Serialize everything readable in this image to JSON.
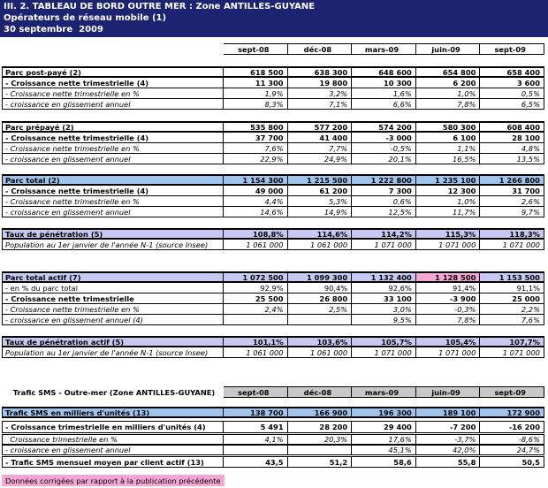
{
  "header": {
    "title": "III. 2. TABLEAU DE BORD OUTRE MER : Zone ANTILLES-GUYANE",
    "subtitle": "Opérateurs de réseau mobile (1)",
    "date": "30 septembre  2009"
  },
  "columns": [
    "sept-08",
    "déc-08",
    "mars-09",
    "juin-09",
    "sept-09"
  ],
  "sections": [
    {
      "rows": [
        {
          "label": "Parc post-payé (2)",
          "values": [
            "618 500",
            "638 300",
            "648 600",
            "654 800",
            "658 400"
          ]
        },
        {
          "label": "- Croissance nette trimestrielle (4)",
          "values": [
            "11 300",
            "19 800",
            "10 300",
            "6 200",
            "3 600"
          ]
        },
        {
          "label": "- Croissance nette trimestrielle en %",
          "values": [
            "1,9%",
            "3,2%",
            "1,6%",
            "1,0%",
            "0,5%"
          ]
        },
        {
          "label": "- croissance en glissement annuel",
          "values": [
            "8,3%",
            "7,1%",
            "6,6%",
            "7,8%",
            "6,5%"
          ]
        }
      ]
    },
    {
      "rows": [
        {
          "label": "Parc prépayé (2)",
          "values": [
            "535 800",
            "577 200",
            "574 200",
            "580 300",
            "608 400"
          ]
        },
        {
          "label": "- Croissance nette trimestrielle (4)",
          "values": [
            "37 700",
            "41 400",
            "-3 000",
            "6 100",
            "28 100"
          ]
        },
        {
          "label": "- Croissance nette trimestrielle en %",
          "values": [
            "7,6%",
            "7,7%",
            "-0,5%",
            "1,1%",
            "4,8%"
          ]
        },
        {
          "label": "- croissance en glissement annuel",
          "values": [
            "22,9%",
            "24,9%",
            "20,1%",
            "16,5%",
            "13,5%"
          ]
        }
      ]
    },
    {
      "rows": [
        {
          "label": "Parc total (2)",
          "values": [
            "1 154 300",
            "1 215 500",
            "1 222 800",
            "1 235 100",
            "1 266 800"
          ]
        },
        {
          "label": "- Croissance nette trimestrielle (4)",
          "values": [
            "49 000",
            "61 200",
            "7 300",
            "12 300",
            "31 700"
          ]
        },
        {
          "label": "- Croissance nette trimestrielle en %",
          "values": [
            "4,4%",
            "5,3%",
            "0,6%",
            "1,0%",
            "2,6%"
          ]
        },
        {
          "label": "- croissance en glissement annuel",
          "values": [
            "14,6%",
            "14,9%",
            "12,5%",
            "11,7%",
            "9,7%"
          ]
        }
      ]
    },
    {
      "rows": [
        {
          "label": "Taux de pénétration (5)",
          "values": [
            "108,8%",
            "114,6%",
            "114,2%",
            "115,3%",
            "118,3%"
          ]
        },
        {
          "label": "Population au 1er janvier de l'année N-1 (source Insee)",
          "values": [
            "1 061 000",
            "1 061 000",
            "1 071 000",
            "1 071 000",
            "1 071 000"
          ]
        }
      ]
    },
    {
      "rows": [
        {
          "label": "Parc total actif (7)",
          "values": [
            "1 072 500",
            "1 099 300",
            "1 132 400",
            "1 128 500",
            "1 153 500"
          ]
        },
        {
          "label": "- en % du parc total",
          "values": [
            "92,9%",
            "90,4%",
            "92,6%",
            "91,4%",
            "91,1%"
          ]
        },
        {
          "label": "- Croissance nette trimestrielle",
          "values": [
            "25 500",
            "26 800",
            "33 100",
            "-3 900",
            "25 000"
          ]
        },
        {
          "label": "- Croissance nette trimestrielle en %",
          "values": [
            "2,4%",
            "2,5%",
            "3,0%",
            "-0,3%",
            "2,2%"
          ]
        },
        {
          "label": "- croissance en glissement annuel (4)",
          "values": [
            null,
            null,
            "9,5%",
            "7,8%",
            "7,6%"
          ]
        }
      ]
    },
    {
      "rows": [
        {
          "label": "Taux de pénétration actif (5)",
          "values": [
            "101,1%",
            "103,6%",
            "105,7%",
            "105,4%",
            "107,7%"
          ]
        },
        {
          "label": "Population au 1er janvier de l'année N-1 (source Insee)",
          "values": [
            "1 061 000",
            "1 061 000",
            "1 071 000",
            "1 071 000",
            "1 071 000"
          ]
        }
      ]
    }
  ],
  "sms": {
    "title": "Trafic SMS - Outre-mer (Zone ANTILLES-GUYANE)",
    "columns": [
      "sept-08",
      "déc-08",
      "mars-09",
      "juin-09",
      "sept-09"
    ],
    "rows": [
      {
        "label": "Trafic SMS en milliers d'unités (13)",
        "values": [
          "138 700",
          "166 900",
          "196 300",
          "189 100",
          "172 900"
        ]
      },
      {
        "label": "- Croissance trimestrielle en milliers d'unités (4)",
        "values": [
          "5 491",
          "28 200",
          "29 400",
          "-7 200",
          "-16 200"
        ]
      },
      {
        "label": "  Croissance trimestrielle en %",
        "values": [
          "4,1%",
          "20,3%",
          "17,6%",
          "-3,7%",
          "-8,6%"
        ]
      },
      {
        "label": "- croissance en glissement annuel",
        "values": [
          null,
          null,
          "45,1%",
          "42,0%",
          "24,7%"
        ]
      },
      {
        "label": "- Trafic SMS mensuel moyen par client actif (13)",
        "values": [
          "43,5",
          "51,2",
          "58,6",
          "55,8",
          "50,5"
        ]
      }
    ]
  },
  "note": "Données corrigées par rapport à la publication précédente"
}
